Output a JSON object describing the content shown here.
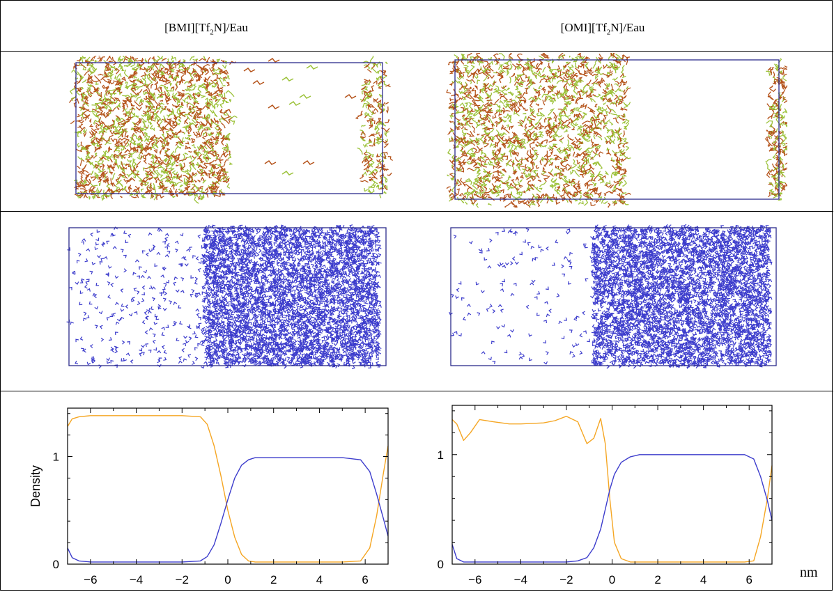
{
  "columns": [
    {
      "title_pre": "[BMI][Tf",
      "title_sub": "2",
      "title_post": "N]/Eau"
    },
    {
      "title_pre": "[OMI][Tf",
      "title_sub": "2",
      "title_post": "N]/Eau"
    }
  ],
  "x_unit": "nm",
  "colors": {
    "ionic_liquid_orange": "#f5a623",
    "water_blue": "#3c3ccc",
    "frame": "#2b2b8c",
    "snapshot_brown": "#b5541c",
    "snapshot_green": "#9cc23a"
  },
  "chart_data": [
    {
      "type": "line",
      "title": "",
      "xlabel": "",
      "ylabel": "Density",
      "xlim": [
        -7,
        7
      ],
      "ylim": [
        0,
        1.45
      ],
      "xticks": [
        -6,
        -4,
        -2,
        0,
        2,
        4,
        6
      ],
      "yticks": [
        0,
        1
      ],
      "grid": false,
      "series": [
        {
          "color": "#f5a623",
          "x": [
            -7,
            -6.8,
            -6.5,
            -6,
            -5,
            -4,
            -3,
            -2,
            -1.2,
            -0.9,
            -0.6,
            -0.3,
            0,
            0.3,
            0.6,
            0.9,
            1.2,
            2,
            3,
            4,
            5,
            5.8,
            6.2,
            6.5,
            6.8,
            7
          ],
          "y": [
            1.28,
            1.35,
            1.37,
            1.38,
            1.38,
            1.38,
            1.38,
            1.38,
            1.37,
            1.3,
            1.1,
            0.82,
            0.5,
            0.25,
            0.09,
            0.03,
            0.02,
            0.02,
            0.02,
            0.02,
            0.02,
            0.03,
            0.15,
            0.45,
            0.85,
            1.1
          ]
        },
        {
          "color": "#3c3ccc",
          "x": [
            -7,
            -6.8,
            -6.5,
            -6,
            -5,
            -4,
            -3,
            -2,
            -1.2,
            -0.9,
            -0.6,
            -0.3,
            0,
            0.3,
            0.6,
            0.9,
            1.2,
            2,
            3,
            4,
            5,
            5.8,
            6.2,
            6.5,
            6.8,
            7
          ],
          "y": [
            0.15,
            0.06,
            0.03,
            0.02,
            0.02,
            0.02,
            0.02,
            0.02,
            0.03,
            0.07,
            0.18,
            0.38,
            0.6,
            0.8,
            0.92,
            0.97,
            0.99,
            0.99,
            0.99,
            0.99,
            0.99,
            0.97,
            0.86,
            0.65,
            0.42,
            0.26
          ]
        }
      ]
    },
    {
      "type": "line",
      "title": "",
      "xlabel": "",
      "ylabel": "",
      "xlim": [
        -7,
        7
      ],
      "ylim": [
        0,
        1.45
      ],
      "xticks": [
        -6,
        -4,
        -2,
        0,
        2,
        4,
        6
      ],
      "yticks": [
        0,
        1
      ],
      "grid": false,
      "series": [
        {
          "color": "#f5a623",
          "x": [
            -7,
            -6.8,
            -6.5,
            -6.2,
            -5.8,
            -5.2,
            -4.5,
            -4,
            -3,
            -2.5,
            -2,
            -1.5,
            -1.1,
            -0.8,
            -0.5,
            -0.3,
            -0.1,
            0.1,
            0.4,
            0.8,
            1.2,
            2,
            3,
            4,
            5,
            5.8,
            6.2,
            6.5,
            6.8,
            7
          ],
          "y": [
            1.32,
            1.28,
            1.13,
            1.2,
            1.32,
            1.3,
            1.28,
            1.28,
            1.29,
            1.31,
            1.35,
            1.3,
            1.1,
            1.15,
            1.33,
            1.1,
            0.6,
            0.2,
            0.05,
            0.02,
            0.02,
            0.02,
            0.02,
            0.02,
            0.02,
            0.02,
            0.03,
            0.25,
            0.6,
            0.9
          ]
        },
        {
          "color": "#3c3ccc",
          "x": [
            -7,
            -6.8,
            -6.5,
            -6.2,
            -5.8,
            -5.2,
            -4.5,
            -4,
            -3,
            -2.5,
            -2,
            -1.5,
            -1.1,
            -0.8,
            -0.5,
            -0.3,
            -0.1,
            0.1,
            0.4,
            0.8,
            1.2,
            2,
            3,
            4,
            5,
            5.8,
            6.2,
            6.5,
            6.8,
            7
          ],
          "y": [
            0.18,
            0.05,
            0.02,
            0.02,
            0.02,
            0.02,
            0.02,
            0.02,
            0.02,
            0.02,
            0.02,
            0.03,
            0.06,
            0.15,
            0.32,
            0.5,
            0.68,
            0.82,
            0.93,
            0.98,
            1.0,
            1.0,
            1.0,
            1.0,
            1.0,
            1.0,
            0.96,
            0.8,
            0.58,
            0.4
          ]
        }
      ]
    }
  ]
}
